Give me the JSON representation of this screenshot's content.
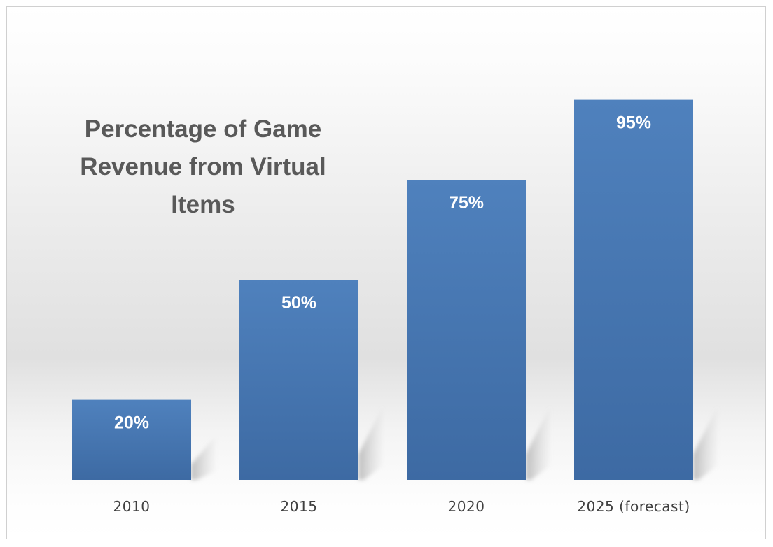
{
  "chart_data": {
    "type": "bar",
    "title": "Percentage of Game Revenue from Virtual Items",
    "categories": [
      "2010",
      "2015",
      "2020",
      "2025 (forecast)"
    ],
    "values": [
      20,
      50,
      75,
      95
    ],
    "data_labels": [
      "20%",
      "50%",
      "75%",
      "95%"
    ],
    "ylim": [
      0,
      100
    ],
    "xlabel": "",
    "ylabel": "",
    "grid": false,
    "legend": "none",
    "colors": {
      "bar_top": "#4f81bd",
      "bar_bottom": "#3d6aa3",
      "title": "#595959",
      "tick_label": "#404040",
      "data_label": "#ffffff"
    }
  }
}
